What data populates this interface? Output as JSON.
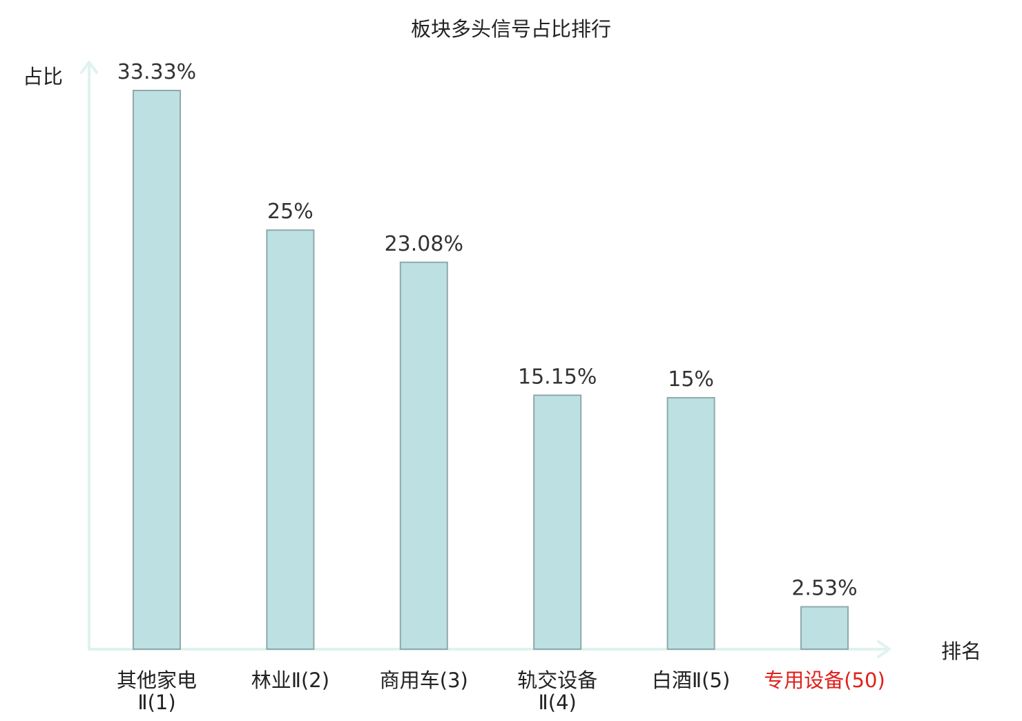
{
  "chart_data": {
    "type": "bar",
    "title": "板块多头信号占比排行",
    "ylabel": "占比",
    "xlabel": "排名",
    "categories": [
      [
        "其他家电",
        "Ⅱ(1)"
      ],
      [
        "林业Ⅱ(2)"
      ],
      [
        "商用车(3)"
      ],
      [
        "轨交设备",
        "Ⅱ(4)"
      ],
      [
        "白酒Ⅱ(5)"
      ],
      [
        "专用设备(50)"
      ]
    ],
    "values": [
      33.33,
      25,
      23.08,
      15.15,
      15,
      2.53
    ],
    "value_labels": [
      "33.33%",
      "25%",
      "23.08%",
      "15.15%",
      "15%",
      "2.53%"
    ],
    "highlight_index": 5,
    "ylim": [
      0,
      33.33
    ],
    "grid": false,
    "legend": "none",
    "colors": {
      "bar_fill": "#bde0e2",
      "bar_stroke": "#8fa9ab",
      "axis": "#dff2ef",
      "text": "#333333",
      "title": "#222222",
      "highlight": "#e0201b"
    }
  }
}
